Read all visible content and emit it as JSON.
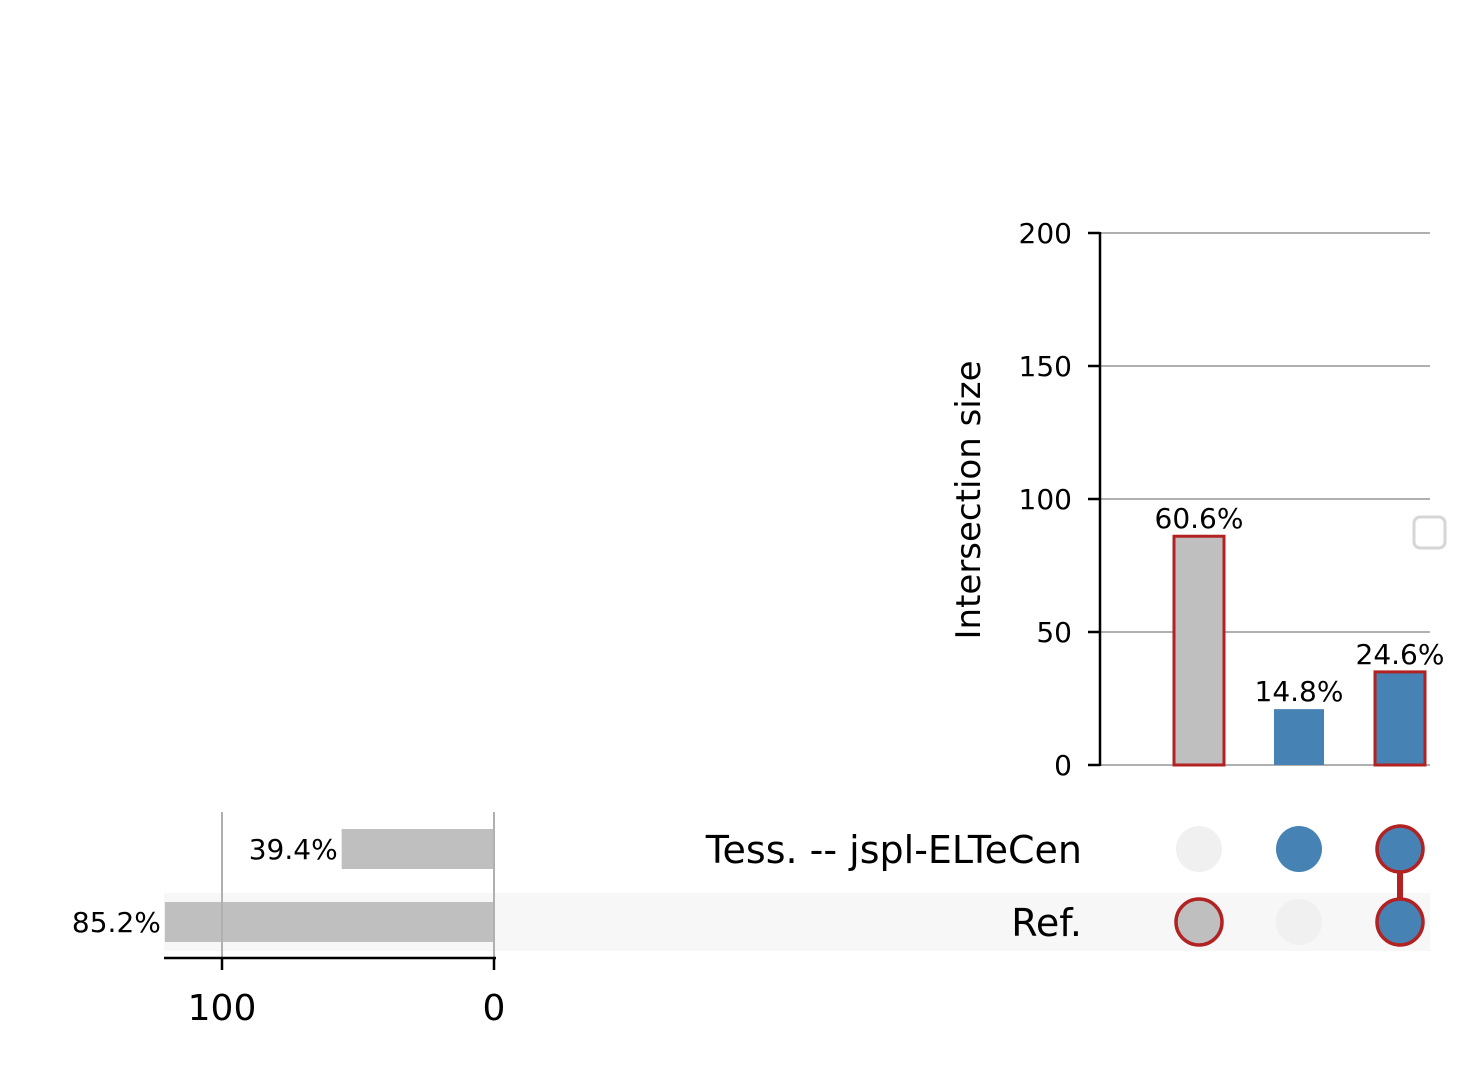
{
  "chart_data": {
    "type": "upset",
    "intersections": {
      "ylabel": "Intersection size",
      "ylim": [
        0,
        200
      ],
      "yticks": [
        0,
        50,
        100,
        150,
        200
      ],
      "grid": true,
      "bars": [
        {
          "members": [
            "Ref."
          ],
          "value": 86,
          "label": "60.6%",
          "fill": "#bfbfbf",
          "outline": "#b22222"
        },
        {
          "members": [
            "Tess. -- jspl-ELTeCen"
          ],
          "value": 21,
          "label": "14.8%",
          "fill": "#4682b4",
          "outline": null
        },
        {
          "members": [
            "Tess. -- jspl-ELTeCen",
            "Ref."
          ],
          "value": 35,
          "label": "24.6%",
          "fill": "#4682b4",
          "outline": "#b22222"
        }
      ]
    },
    "sets": [
      {
        "name": "Tess. -- jspl-ELTeCen",
        "size": 56,
        "label": "39.4%"
      },
      {
        "name": "Ref.",
        "size": 121,
        "label": "85.2%"
      }
    ],
    "set_size_axis": {
      "ticks": [
        100,
        0
      ],
      "max": 121
    },
    "legend": {
      "placement": "right",
      "entries": []
    },
    "colors": {
      "active": "#4682b4",
      "inactive_fill": "#bfbfbf",
      "highlight_edge": "#b22222",
      "empty_dot": "#f0f0f0",
      "grid": "#b0b0b0",
      "row_shade": "#f7f7f7"
    }
  }
}
